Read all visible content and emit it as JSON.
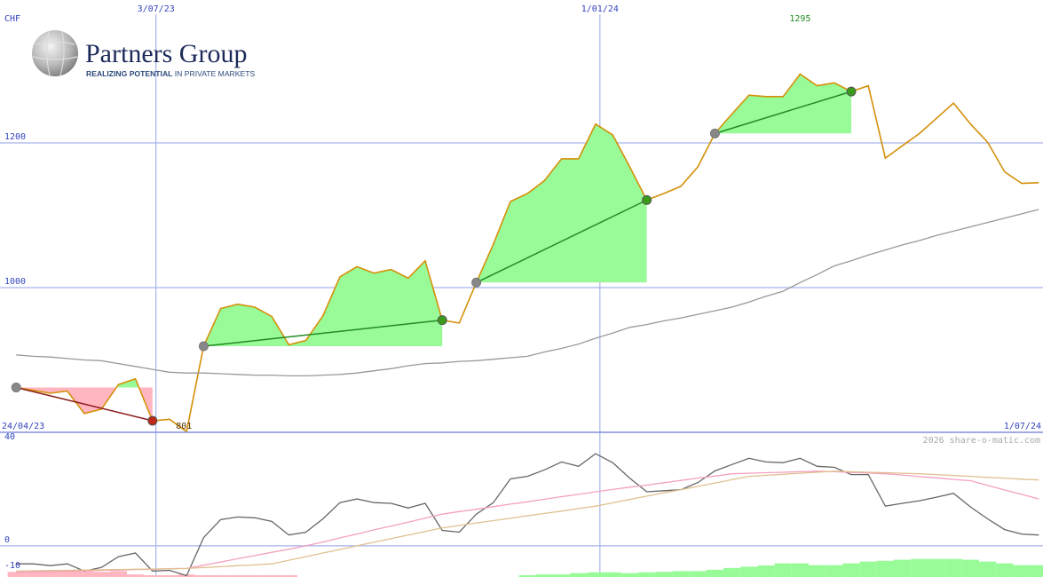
{
  "logo": {
    "name": "Partners Group",
    "tagline_bold": "REALIZING POTENTIAL",
    "tagline_rest": " IN PRIVATE MARKETS"
  },
  "chart_data": [
    {
      "type": "line",
      "ylabel": "CHF",
      "xlim": [
        -0.95,
        60.25
      ],
      "ylim": [
        800,
        1397.5
      ],
      "yticks": [
        1000,
        1200
      ],
      "grid": true,
      "xticks": [
        {
          "value": 8.2,
          "label": "3/07/23"
        },
        {
          "value": 34.25,
          "label": "1/01/24"
        }
      ],
      "date_range": [
        "24/04/23",
        "1/07/24"
      ],
      "high": 1295,
      "low": 801,
      "series": [
        {
          "color": "#d4900a",
          "values": [
            862,
            858,
            854,
            857,
            826,
            832,
            866,
            874,
            816,
            818,
            801,
            919,
            971,
            977,
            973,
            960,
            921,
            927,
            961,
            1015,
            1029,
            1020,
            1025,
            1013,
            1037,
            955,
            951,
            1007,
            1060,
            1119,
            1130,
            1148,
            1178,
            1178,
            1226,
            1211,
            1167,
            1121,
            1130,
            1140,
            1167,
            1213,
            1240,
            1266,
            1264,
            1264,
            1295,
            1279,
            1283,
            1271,
            1279,
            1179,
            1196,
            1213,
            1234,
            1255,
            1226,
            1201,
            1160,
            1144,
            1145
          ]
        },
        {
          "color": "#999999",
          "values": [
            907,
            905,
            904,
            902,
            900,
            899,
            895,
            891,
            887,
            883,
            882,
            882,
            881,
            880,
            879,
            879,
            878,
            878,
            879,
            880,
            882,
            885,
            888,
            892,
            895,
            896,
            898,
            899,
            901,
            903,
            905,
            911,
            916,
            922,
            930,
            937,
            945,
            949,
            954,
            958,
            963,
            968,
            973,
            980,
            988,
            995,
            1007,
            1018,
            1030,
            1037,
            1045,
            1052,
            1059,
            1065,
            1072,
            1078,
            1084,
            1090,
            1096,
            1102,
            1108
          ]
        }
      ],
      "signals": [
        {
          "from": 0,
          "to": 8,
          "trend": "down"
        },
        {
          "from": 11,
          "to": 25,
          "trend": "up"
        },
        {
          "from": 27,
          "to": 37,
          "trend": "up"
        },
        {
          "from": 41,
          "to": 49,
          "trend": "up"
        }
      ],
      "signal_colors": {
        "up": "#228b22",
        "down": "#8b1a1a"
      },
      "dot_colors": {
        "start": "#888888",
        "up": "#3a9a1a",
        "down": "#c0281c"
      },
      "fill_colors": {
        "up": "#98fb98",
        "down": "#ffb6c1"
      },
      "high_color": "#228b22"
    },
    {
      "type": "line",
      "xlim": [
        -0.95,
        60.25
      ],
      "ylim": [
        -12.1,
        44.1
      ],
      "yticks": [
        40,
        0,
        -10
      ],
      "zero_line": true,
      "credit": "2026 share-o-matic.com",
      "series": [
        {
          "color": "#666666",
          "values": [
            -7,
            -7,
            -7.7,
            -7,
            -9.8,
            -8.4,
            -4.2,
            -2.8,
            -9.8,
            -9.5,
            -11.6,
            3.2,
            10.2,
            11.2,
            10.9,
            9.5,
            4.2,
            5.3,
            10.5,
            16.8,
            18.2,
            16.8,
            16.5,
            14.7,
            16.5,
            6,
            5.3,
            12.3,
            16.8,
            26,
            27,
            29.5,
            32.6,
            30.9,
            35.8,
            32.3,
            26.3,
            21,
            21.4,
            21.8,
            24.6,
            29.1,
            31.6,
            34,
            32.6,
            32.3,
            34,
            30.9,
            30.5,
            27.7,
            27.7,
            15.4,
            16.5,
            17.5,
            18.9,
            20.4,
            15.1,
            10.5,
            6.3,
            4.6,
            4.2
          ]
        },
        {
          "color": "#f4a0c0",
          "values": [
            -10.3,
            -10.1,
            -10,
            -9.8,
            -9.7,
            -9.5,
            -9.4,
            -9.2,
            -9.1,
            -8.9,
            -8.8,
            -7.5,
            -6.3,
            -5,
            -3.8,
            -2.5,
            -1.3,
            0,
            1.5,
            3.1,
            4.6,
            6.2,
            7.7,
            9.2,
            10.8,
            12.3,
            13.3,
            14.2,
            15.2,
            16.2,
            17.1,
            18.1,
            19.1,
            20,
            21,
            21.9,
            22.8,
            23.6,
            24.5,
            25.4,
            26.3,
            27.1,
            28,
            28.2,
            28.4,
            28.6,
            28.8,
            29,
            28.8,
            28.5,
            28.3,
            28,
            27.5,
            26.9,
            26.4,
            25.8,
            25.3,
            23.5,
            21.7,
            20,
            18.2
          ]
        },
        {
          "color": "#e0c090",
          "values": [
            -9.8,
            -9.7,
            -9.6,
            -9.5,
            -9.4,
            -9.3,
            -9.2,
            -9.1,
            -9,
            -8.9,
            -8.8,
            -8.4,
            -8.1,
            -7.7,
            -7.4,
            -7,
            -5.6,
            -4.2,
            -2.8,
            -1.4,
            0,
            1.4,
            2.8,
            4.2,
            5.6,
            7,
            7.9,
            8.9,
            9.8,
            10.7,
            11.7,
            12.6,
            13.5,
            14.5,
            15.4,
            16.7,
            18,
            19.3,
            20.6,
            21.8,
            23.1,
            24.4,
            25.7,
            27,
            27.4,
            27.8,
            28.2,
            28.6,
            29,
            28.8,
            28.6,
            28.4,
            28.2,
            28,
            27.7,
            27.3,
            27,
            26.6,
            26.3,
            25.9,
            25.6
          ]
        }
      ],
      "histogram": {
        "colors": {
          "positive": "#98fb98",
          "negative": "#ffb6c1"
        },
        "values": [
          -2,
          -2,
          -2.3,
          -2.3,
          -2.3,
          -2,
          -2.3,
          -1,
          -0.7,
          -0.7,
          -1,
          -0.7,
          -0.7,
          -0.7,
          -0.7,
          -0.7,
          -0.7,
          0,
          0,
          0,
          0,
          0,
          0,
          0,
          0,
          0,
          0,
          0,
          0,
          0,
          0.7,
          1,
          1,
          1.5,
          1.8,
          1.8,
          1.5,
          1.8,
          2,
          2.3,
          2.3,
          2.8,
          3.5,
          4,
          4.5,
          5.3,
          5.3,
          4.6,
          4.6,
          5.3,
          6,
          6.3,
          6.7,
          7,
          7,
          7,
          6.7,
          6,
          5.3,
          4.6,
          4.6
        ]
      }
    }
  ]
}
